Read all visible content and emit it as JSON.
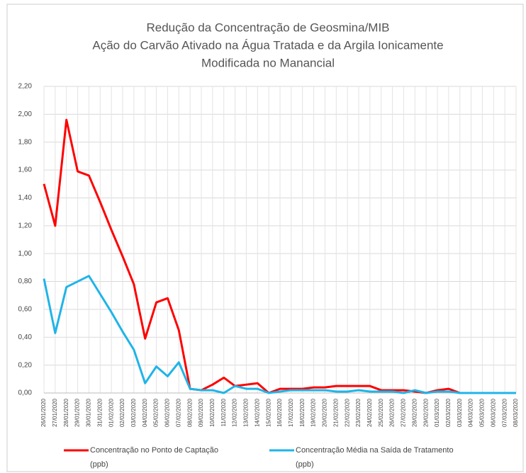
{
  "chart_data": {
    "type": "line",
    "title": [
      "Redução da Concentração de Geosmina/MIB",
      "Ação do Carvão Ativado na Água Tratada e da Argila Ionicamente",
      "Modificada no Manancial"
    ],
    "categories": [
      "26/01/2020",
      "27/01/2020",
      "28/01/2020",
      "29/01/2020",
      "30/01/2020",
      "31/01/2020",
      "01/02/2020",
      "02/02/2020",
      "03/02/2020",
      "04/02/2020",
      "05/02/2020",
      "06/02/2020",
      "07/02/2020",
      "08/02/2020",
      "09/02/2020",
      "10/02/2020",
      "11/02/2020",
      "12/02/2020",
      "13/02/2020",
      "14/02/2020",
      "15/02/2020",
      "16/02/2020",
      "17/02/2020",
      "18/02/2020",
      "19/02/2020",
      "20/02/2020",
      "21/02/2020",
      "22/02/2020",
      "23/02/2020",
      "24/02/2020",
      "25/02/2020",
      "26/02/2020",
      "27/02/2020",
      "28/02/2020",
      "29/02/2020",
      "01/03/2020",
      "02/03/2020",
      "03/03/2020",
      "04/03/2020",
      "05/03/2020",
      "06/03/2020",
      "07/03/2020",
      "08/03/2020"
    ],
    "series": [
      {
        "name": [
          "Concentração no Ponto de Captação",
          "(ppb)"
        ],
        "color": "#ff0000",
        "values": [
          1.5,
          1.2,
          1.96,
          1.59,
          1.56,
          1.37,
          1.17,
          0.98,
          0.78,
          0.39,
          0.65,
          0.68,
          0.45,
          0.03,
          0.02,
          0.06,
          0.11,
          0.05,
          0.06,
          0.07,
          0.0,
          0.03,
          0.03,
          0.03,
          0.04,
          0.04,
          0.05,
          0.05,
          0.05,
          0.05,
          0.02,
          0.02,
          0.02,
          0.01,
          0.0,
          0.02,
          0.03,
          0.0,
          0,
          0,
          0,
          0,
          0
        ]
      },
      {
        "name": [
          "Concentração Média na Saída de Tratamento",
          "(ppb)"
        ],
        "color": "#1fb4e8",
        "values": [
          0.82,
          0.43,
          0.76,
          0.8,
          0.84,
          0.71,
          0.58,
          0.44,
          0.31,
          0.07,
          0.19,
          0.12,
          0.22,
          0.03,
          0.02,
          0.02,
          0.0,
          0.05,
          0.03,
          0.03,
          0.0,
          0.01,
          0.02,
          0.02,
          0.02,
          0.02,
          0.01,
          0.01,
          0.02,
          0.01,
          0.01,
          0.01,
          0.0,
          0.02,
          0.0,
          0.01,
          0.01,
          0.0,
          0,
          0,
          0,
          0,
          0
        ]
      }
    ],
    "ylim": [
      0,
      2.2
    ],
    "yticks": [
      {
        "value": 0,
        "label": "0,00"
      },
      {
        "value": 0.2,
        "label": "0,20"
      },
      {
        "value": 0.4,
        "label": "0,40"
      },
      {
        "value": 0.6,
        "label": "0,60"
      },
      {
        "value": 0.8,
        "label": "0,80"
      },
      {
        "value": 1.0,
        "label": "1,00"
      },
      {
        "value": 1.2,
        "label": "1,20"
      },
      {
        "value": 1.4,
        "label": "1,40"
      },
      {
        "value": 1.6,
        "label": "1,60"
      },
      {
        "value": 1.8,
        "label": "1,80"
      },
      {
        "value": 2.0,
        "label": "2,00"
      },
      {
        "value": 2.2,
        "label": "2,20"
      }
    ],
    "grid": true
  }
}
